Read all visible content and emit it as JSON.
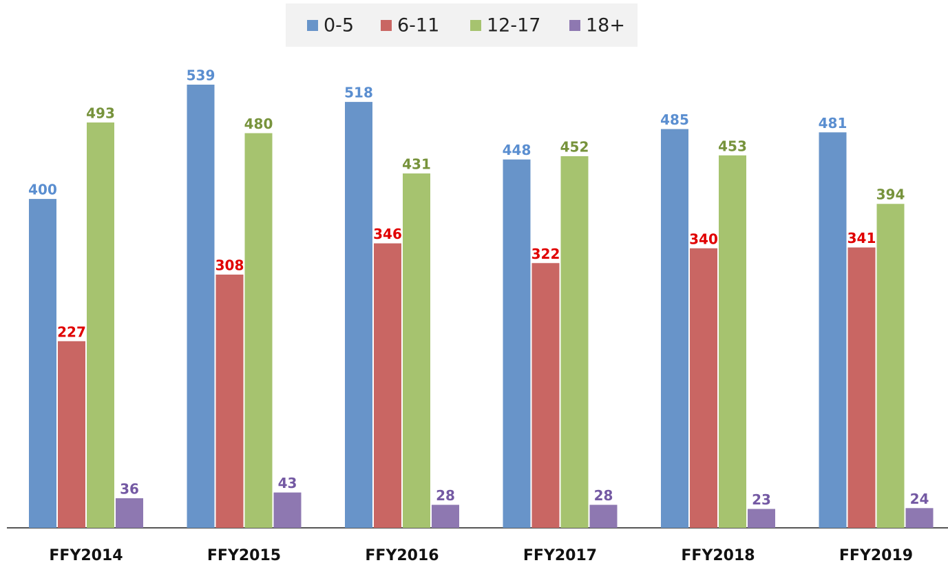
{
  "chart_data": {
    "type": "bar",
    "categories": [
      "FFY2014",
      "FFY2015",
      "FFY2016",
      "FFY2017",
      "FFY2018",
      "FFY2019"
    ],
    "series": [
      {
        "name": "0-5",
        "color": "#6894c9",
        "label_color": "#5a8ed0",
        "values": [
          400,
          539,
          518,
          448,
          485,
          481
        ]
      },
      {
        "name": "6-11",
        "color": "#c96663",
        "label_color": "#e00000",
        "values": [
          227,
          308,
          346,
          322,
          340,
          341
        ]
      },
      {
        "name": "12-17",
        "color": "#a6c36f",
        "label_color": "#77933c",
        "values": [
          493,
          480,
          431,
          452,
          453,
          394
        ]
      },
      {
        "name": "18+",
        "color": "#8e78b1",
        "label_color": "#7459a3",
        "values": [
          36,
          43,
          28,
          28,
          23,
          24
        ]
      }
    ],
    "legend": "top"
  }
}
